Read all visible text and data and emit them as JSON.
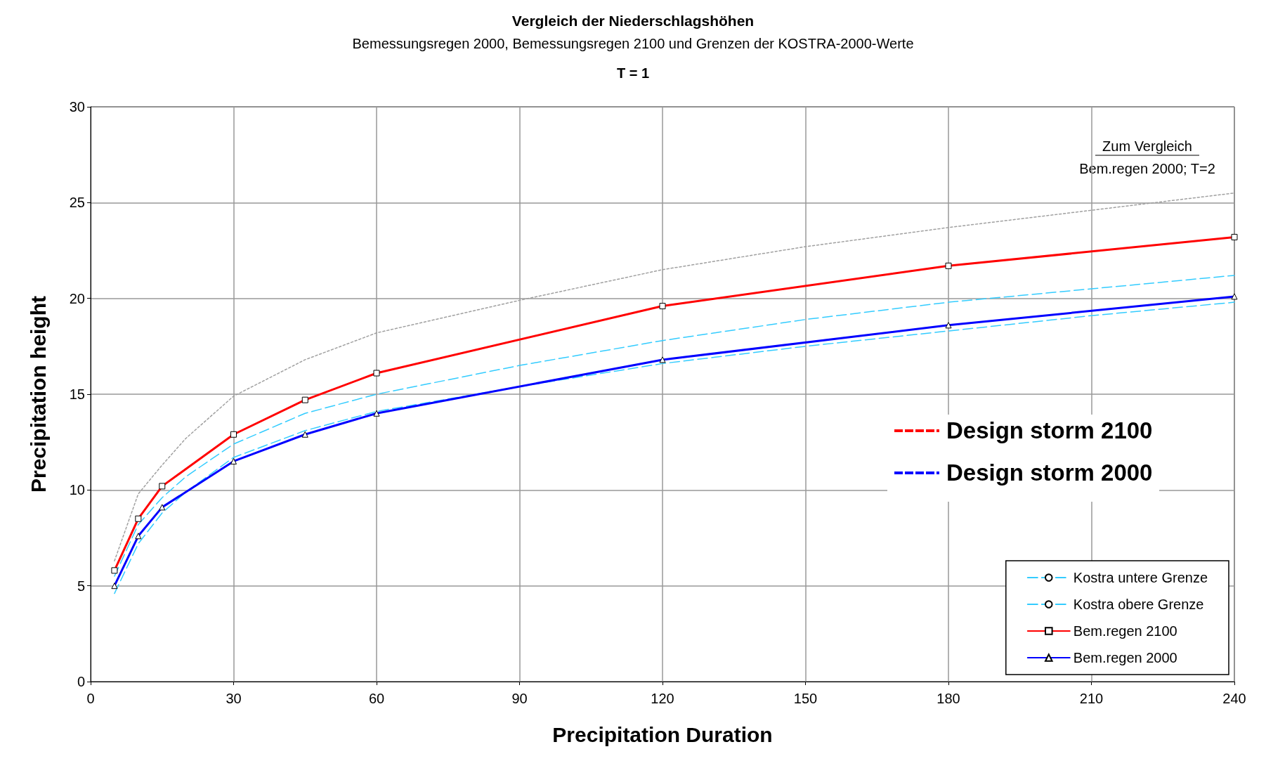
{
  "chart_data": {
    "type": "line",
    "title": "Vergleich der Niederschlagshöhen",
    "subtitle": "Bemessungsregen 2000, Bemessungsregen 2100 und Grenzen der KOSTRA-2000-Werte",
    "xlabel": "Precipitation Duration",
    "ylabel": "Precipitation height",
    "annotations": [
      "T = 1",
      "Zum Vergleich",
      "Bem.regen 2000; T=2",
      "Design storm 2100",
      "Design storm 2000"
    ],
    "xlim": [
      0,
      240
    ],
    "xticks": [
      0,
      30,
      60,
      90,
      120,
      150,
      180,
      210,
      240
    ],
    "ylim": [
      0,
      30
    ],
    "yticks": [
      0,
      5,
      10,
      15,
      20,
      25,
      30
    ],
    "grid": true,
    "legend": "bottom right",
    "series": [
      {
        "name": "Kostra untere Grenze",
        "color": "#33ccff",
        "marker": "none",
        "line_style": "dashed",
        "x": [
          5,
          10,
          15,
          20,
          30,
          45,
          60,
          90,
          120,
          150,
          180,
          210,
          240
        ],
        "values": [
          4.6,
          7.2,
          8.8,
          9.9,
          11.7,
          13.1,
          14.1,
          15.4,
          16.6,
          17.5,
          18.3,
          19.1,
          19.8
        ]
      },
      {
        "name": "Kostra obere Grenze",
        "color": "#33ccff",
        "marker": "none",
        "line_style": "dashed",
        "x": [
          5,
          10,
          15,
          20,
          30,
          45,
          60,
          90,
          120,
          150,
          180,
          210,
          240
        ],
        "values": [
          5.5,
          8.2,
          9.6,
          10.7,
          12.4,
          14.0,
          15.0,
          16.5,
          17.8,
          18.9,
          19.8,
          20.5,
          21.2
        ]
      },
      {
        "name": "Bem.regen 2100",
        "color": "#ff0000",
        "marker": "square",
        "line_style": "solid",
        "x": [
          5,
          10,
          15,
          30,
          45,
          60,
          120,
          180,
          240
        ],
        "values": [
          5.8,
          8.5,
          10.2,
          12.9,
          14.7,
          16.1,
          19.6,
          21.7,
          23.2
        ]
      },
      {
        "name": "Bem.regen 2000",
        "color": "#0000ff",
        "marker": "triangle",
        "line_style": "solid",
        "x": [
          5,
          10,
          15,
          30,
          45,
          60,
          120,
          180,
          240
        ],
        "values": [
          5.0,
          7.6,
          9.1,
          11.5,
          12.9,
          14.0,
          16.8,
          18.6,
          20.1
        ]
      },
      {
        "color": "#a0a0a0",
        "marker": "none",
        "line_style": "dotted",
        "x": [
          5,
          10,
          15,
          20,
          30,
          45,
          60,
          90,
          120,
          150,
          180,
          210,
          240
        ],
        "values": [
          6.3,
          9.8,
          11.3,
          12.7,
          14.9,
          16.8,
          18.2,
          19.9,
          21.5,
          22.7,
          23.7,
          24.6,
          25.5
        ]
      }
    ]
  }
}
